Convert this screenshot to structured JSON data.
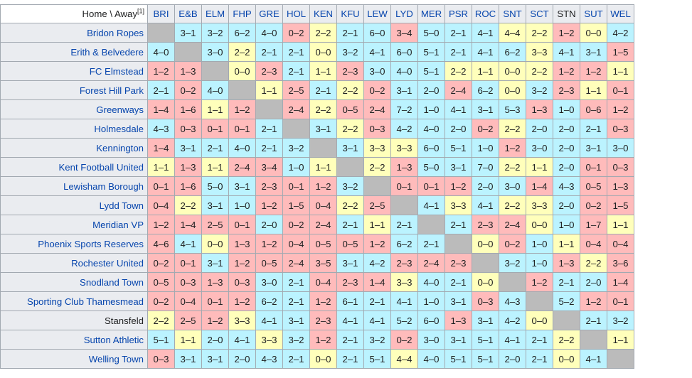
{
  "corner_label": "Home \\ Away",
  "corner_note": "[1]",
  "colors": {
    "win": "#bbf3ff",
    "draw": "#ffffbb",
    "loss": "#ffbbbb",
    "self": "#bbbbbb"
  },
  "columns": [
    "BRI",
    "E&B",
    "ELM",
    "FHP",
    "GRE",
    "HOL",
    "KEN",
    "KFU",
    "LEW",
    "LYD",
    "MER",
    "PSR",
    "ROC",
    "SNT",
    "SCT",
    "STN",
    "SUT",
    "WEL"
  ],
  "rows": [
    {
      "team": "Bridon Ropes",
      "self_col": 0,
      "results": [
        "",
        "3–1",
        "3–2",
        "6–2",
        "4–0",
        "0–2",
        "2–2",
        "2–1",
        "6–0",
        "3–4",
        "5–0",
        "2–1",
        "4–1",
        "4–4",
        "2–2",
        "1–2",
        "0–0",
        "4–2"
      ]
    },
    {
      "team": "Erith & Belvedere",
      "self_col": 1,
      "results": [
        "4–0",
        "",
        "3–0",
        "2–2",
        "2–1",
        "2–1",
        "0–0",
        "3–2",
        "4–1",
        "6–0",
        "5–1",
        "2–1",
        "4–1",
        "6–2",
        "3–3",
        "4–1",
        "3–1",
        "1–5"
      ]
    },
    {
      "team": "FC Elmstead",
      "self_col": 2,
      "results": [
        "1–2",
        "1–3",
        "",
        "0–0",
        "2–3",
        "2–1",
        "1–1",
        "2–3",
        "3–0",
        "4–0",
        "5–1",
        "2–2",
        "1–1",
        "0–0",
        "2–2",
        "1–2",
        "1–2",
        "1–1"
      ]
    },
    {
      "team": "Forest Hill Park",
      "self_col": 3,
      "results": [
        "2–1",
        "0–2",
        "4–0",
        "",
        "1–1",
        "2–5",
        "2–1",
        "2–2",
        "0–2",
        "3–1",
        "2–0",
        "2–4",
        "6–2",
        "0–0",
        "3–2",
        "2–3",
        "1–1",
        "0–1"
      ]
    },
    {
      "team": "Greenways",
      "self_col": 4,
      "results": [
        "1–4",
        "1–6",
        "1–1",
        "1–2",
        "",
        "2–4",
        "2–2",
        "0–5",
        "2–4",
        "7–2",
        "1–0",
        "4–1",
        "3–1",
        "5–3",
        "1–3",
        "1–0",
        "0–6",
        "1–2"
      ]
    },
    {
      "team": "Holmesdale",
      "self_col": 5,
      "results": [
        "4–3",
        "0–3",
        "0–1",
        "0–1",
        "2–1",
        "",
        "3–1",
        "2–2",
        "0–3",
        "4–2",
        "4–0",
        "2–0",
        "0–2",
        "2–2",
        "2–0",
        "2–0",
        "2–1",
        "0–3"
      ]
    },
    {
      "team": "Kennington",
      "self_col": 6,
      "results": [
        "1–4",
        "3–1",
        "2–1",
        "4–0",
        "2–1",
        "3–2",
        "",
        "3–1",
        "3–3",
        "3–3",
        "6–0",
        "5–1",
        "1–0",
        "1–2",
        "3–0",
        "2–0",
        "3–1",
        "3–0"
      ]
    },
    {
      "team": "Kent Football United",
      "self_col": 7,
      "results": [
        "1–1",
        "1–3",
        "1–1",
        "2–4",
        "3–4",
        "1–0",
        "1–1",
        "",
        "2–2",
        "1–3",
        "5–0",
        "3–1",
        "7–0",
        "2–2",
        "1–1",
        "2–0",
        "0–1",
        "0–3"
      ]
    },
    {
      "team": "Lewisham Borough",
      "self_col": 8,
      "results": [
        "0–1",
        "1–6",
        "5–0",
        "3–1",
        "2–3",
        "0–1",
        "1–2",
        "3–2",
        "",
        "0–1",
        "0–1",
        "1–2",
        "2–0",
        "3–0",
        "1–4",
        "4–3",
        "0–5",
        "1–3"
      ]
    },
    {
      "team": "Lydd Town",
      "self_col": 9,
      "results": [
        "0–4",
        "2–2",
        "3–1",
        "1–0",
        "1–2",
        "1–5",
        "0–4",
        "2–2",
        "2–5",
        "",
        "4–1",
        "3–3",
        "4–1",
        "2–2",
        "3–3",
        "2–0",
        "0–2",
        "1–5"
      ]
    },
    {
      "team": "Meridian VP",
      "self_col": 10,
      "results": [
        "1–2",
        "1–4",
        "2–5",
        "0–1",
        "2–0",
        "0–2",
        "2–4",
        "2–1",
        "1–1",
        "2–1",
        "",
        "2–1",
        "2–3",
        "2–4",
        "0–0",
        "1–0",
        "1–7",
        "1–1"
      ]
    },
    {
      "team": "Phoenix Sports Reserves",
      "self_col": 11,
      "results": [
        "4–6",
        "4–1",
        "0–0",
        "1–3",
        "1–2",
        "0–4",
        "0–5",
        "0–5",
        "1–2",
        "6–2",
        "2–1",
        "",
        "0–0",
        "0–2",
        "1–0",
        "1–1",
        "0–4",
        "0–4"
      ]
    },
    {
      "team": "Rochester United",
      "self_col": 12,
      "results": [
        "0–2",
        "0–1",
        "3–1",
        "1–2",
        "0–5",
        "2–4",
        "3–5",
        "3–1",
        "4–2",
        "2–3",
        "2–4",
        "2–3",
        "",
        "3–2",
        "1–0",
        "1–3",
        "2–2",
        "3–6"
      ]
    },
    {
      "team": "Snodland Town",
      "self_col": 13,
      "results": [
        "0–5",
        "0–3",
        "1–3",
        "0–3",
        "3–0",
        "2–1",
        "0–4",
        "2–3",
        "1–4",
        "3–3",
        "4–0",
        "2–1",
        "0–0",
        "",
        "1–2",
        "2–1",
        "2–0",
        "1–4"
      ]
    },
    {
      "team": "Sporting Club Thamesmead",
      "self_col": 14,
      "results": [
        "0–2",
        "0–4",
        "0–1",
        "1–2",
        "6–2",
        "2–1",
        "1–2",
        "6–1",
        "2–1",
        "4–1",
        "1–0",
        "3–1",
        "0–3",
        "4–3",
        "",
        "5–2",
        "1–2",
        "0–1"
      ]
    },
    {
      "team": "Stansfeld",
      "self_col": 15,
      "results": [
        "2–2",
        "2–5",
        "1–2",
        "3–3",
        "4–1",
        "3–1",
        "2–3",
        "4–1",
        "4–1",
        "5–2",
        "6–0",
        "1–3",
        "3–1",
        "4–2",
        "0–0",
        "",
        "2–1",
        "3–2"
      ]
    },
    {
      "team": "Sutton Athletic",
      "self_col": 16,
      "results": [
        "5–1",
        "1–1",
        "2–0",
        "4–1",
        "3–3",
        "3–2",
        "1–2",
        "2–1",
        "3–2",
        "0–2",
        "3–0",
        "3–1",
        "5–1",
        "4–1",
        "2–1",
        "2–2",
        "",
        "1–1"
      ]
    },
    {
      "team": "Welling Town",
      "self_col": 17,
      "results": [
        "0–3",
        "3–1",
        "3–1",
        "2–0",
        "4–3",
        "2–1",
        "0–0",
        "2–1",
        "5–1",
        "4–4",
        "4–0",
        "5–1",
        "5–1",
        "2–0",
        "2–1",
        "0–0",
        "4–1",
        ""
      ]
    }
  ]
}
